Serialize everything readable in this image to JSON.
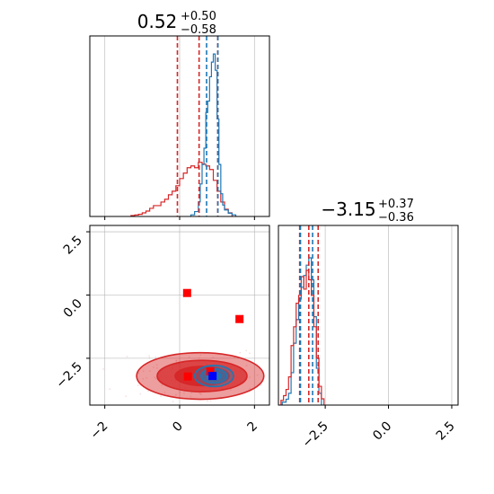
{
  "colors": {
    "red": "#d62728",
    "blue": "#1f77b4",
    "truth_red": "#ff0000",
    "truth_blue": "#0000ff",
    "grid": "#b0b0b0"
  },
  "chart_data": [
    {
      "type": "histogram",
      "panel": "top-left",
      "title": {
        "value": "0.52",
        "upper": "+0.50",
        "lower": "−0.58"
      },
      "xlim": [
        -2.4,
        2.4
      ],
      "x_ticks": [
        -2,
        0,
        2
      ],
      "quantile_lines": {
        "red": [
          -0.06,
          0.52,
          1.02
        ],
        "blue": [
          0.72,
          1.02
        ]
      },
      "series": [
        {
          "color": "red",
          "step_x": [
            -1.3,
            -1.2,
            -1.1,
            -1.0,
            -0.9,
            -0.8,
            -0.7,
            -0.6,
            -0.5,
            -0.4,
            -0.3,
            -0.2,
            -0.1,
            0.0,
            0.1,
            0.2,
            0.3,
            0.4,
            0.5,
            0.6,
            0.7,
            0.8,
            0.9,
            1.0,
            1.1,
            1.2,
            1.3,
            1.4
          ],
          "step_y": [
            0.5,
            0.8,
            1.2,
            2,
            3,
            4.5,
            6,
            6,
            8,
            9.5,
            12,
            14,
            17,
            21,
            24,
            27,
            28,
            27,
            30,
            29,
            28,
            26,
            20,
            14,
            8,
            4,
            2,
            0
          ]
        },
        {
          "color": "blue",
          "step_x": [
            0.3,
            0.4,
            0.5,
            0.55,
            0.6,
            0.65,
            0.7,
            0.75,
            0.8,
            0.85,
            0.9,
            0.95,
            1.0,
            1.05,
            1.1,
            1.15,
            1.2,
            1.3,
            1.4,
            1.5
          ],
          "step_y": [
            1,
            3,
            9,
            20,
            32,
            42,
            64,
            71,
            86,
            95,
            100,
            90,
            60,
            32,
            14,
            7,
            4,
            2,
            1,
            0
          ]
        }
      ]
    },
    {
      "type": "contour-scatter",
      "panel": "bottom-left",
      "xlim": [
        -2.4,
        2.4
      ],
      "ylim": [
        -4.35,
        2.75
      ],
      "x_ticks": [
        -2,
        0,
        2
      ],
      "x_tick_labels": [
        "−2",
        "0",
        "2"
      ],
      "y_ticks": [
        -2.5,
        0.0,
        2.5
      ],
      "y_tick_labels": [
        "−2.5",
        "0.0",
        "2.5"
      ],
      "contours": [
        {
          "color": "red",
          "level": 3,
          "cx": 0.55,
          "cy": -3.2,
          "rx": 1.7,
          "ry": 0.92
        },
        {
          "color": "red",
          "level": 2,
          "cx": 0.6,
          "cy": -3.2,
          "rx": 1.2,
          "ry": 0.62
        },
        {
          "color": "red",
          "level": 1,
          "cx": 0.6,
          "cy": -3.2,
          "rx": 0.72,
          "ry": 0.38
        },
        {
          "color": "blue",
          "level": 3,
          "cx": 0.92,
          "cy": -3.2,
          "rx": 0.52,
          "ry": 0.42
        },
        {
          "color": "blue",
          "level": 2,
          "cx": 0.92,
          "cy": -3.2,
          "rx": 0.35,
          "ry": 0.28
        },
        {
          "color": "blue",
          "level": 1,
          "cx": 0.92,
          "cy": -3.2,
          "rx": 0.18,
          "ry": 0.15
        }
      ],
      "points": [
        {
          "color": "truth_red",
          "x": 0.2,
          "y": 0.08
        },
        {
          "color": "truth_red",
          "x": 1.6,
          "y": -0.95
        },
        {
          "color": "truth_red",
          "x": 0.22,
          "y": -3.22
        },
        {
          "color": "truth_red",
          "x": 0.82,
          "y": -3.02
        },
        {
          "color": "truth_blue",
          "x": 0.88,
          "y": -3.2
        }
      ]
    },
    {
      "type": "histogram",
      "panel": "bottom-right",
      "title": {
        "value": "−3.15",
        "upper": "+0.37",
        "lower": "−0.36"
      },
      "xlim": [
        -4.35,
        2.75
      ],
      "x_ticks": [
        -2.5,
        0.0,
        2.5
      ],
      "x_tick_labels": [
        "−2.5",
        "0.0",
        "2.5"
      ],
      "quantile_lines": {
        "red": [
          -3.51,
          -3.15,
          -2.78
        ],
        "blue": [
          -3.48,
          -3.0
        ]
      },
      "series": [
        {
          "color": "blue",
          "step_x": [
            -4.2,
            -4.05,
            -3.95,
            -3.85,
            -3.75,
            -3.65,
            -3.55,
            -3.45,
            -3.35,
            -3.25,
            -3.15,
            -3.05,
            -2.95,
            -2.85,
            -2.75,
            -2.65
          ],
          "step_y": [
            2,
            4,
            8,
            22,
            42,
            58,
            72,
            80,
            88,
            95,
            100,
            85,
            60,
            25,
            8,
            0
          ]
        },
        {
          "color": "red",
          "step_x": [
            -4.25,
            -4.15,
            -4.05,
            -3.95,
            -3.85,
            -3.75,
            -3.65,
            -3.55,
            -3.45,
            -3.35,
            -3.25,
            -3.15,
            -3.05,
            -2.95,
            -2.85,
            -2.75,
            -2.65,
            -2.55
          ],
          "step_y": [
            3,
            6,
            10,
            18,
            38,
            50,
            65,
            70,
            82,
            74,
            86,
            80,
            70,
            50,
            30,
            12,
            4,
            0
          ]
        }
      ]
    }
  ]
}
